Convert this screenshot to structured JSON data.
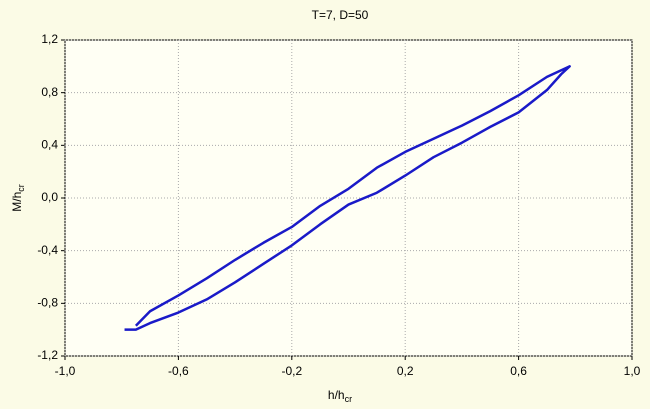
{
  "chart_data": {
    "type": "line",
    "title": "T=7, D=50",
    "xlabel": "h/h",
    "xlabel_sub": "cr",
    "ylabel": "M/h",
    "ylabel_sub": "cr",
    "xlim": [
      -1.0,
      1.0
    ],
    "xticks": [
      {
        "value": -1.0,
        "label": "-1,0"
      },
      {
        "value": -0.6,
        "label": "-0,6"
      },
      {
        "value": -0.2,
        "label": "-0,2"
      },
      {
        "value": 0.2,
        "label": "0,2"
      },
      {
        "value": 0.6,
        "label": "0,6"
      },
      {
        "value": 1.0,
        "label": "1,0"
      }
    ],
    "ylim": [
      -1.2,
      1.2
    ],
    "yticks": [
      {
        "value": -1.2,
        "label": "-1,2"
      },
      {
        "value": -0.8,
        "label": "-0,8"
      },
      {
        "value": -0.4,
        "label": "-0,4"
      },
      {
        "value": 0.0,
        "label": "0,0"
      },
      {
        "value": 0.4,
        "label": "0,4"
      },
      {
        "value": 0.8,
        "label": "0,8"
      },
      {
        "value": 1.2,
        "label": "1,2"
      }
    ],
    "grid": true,
    "series": [
      {
        "color": "#1a1ac8",
        "x": [
          -0.79,
          -0.75,
          -0.7,
          -0.6,
          -0.5,
          -0.4,
          -0.3,
          -0.2,
          -0.1,
          0.0,
          0.1,
          0.2,
          0.3,
          0.4,
          0.5,
          0.6,
          0.7,
          0.75,
          0.78,
          0.7,
          0.6,
          0.5,
          0.4,
          0.3,
          0.2,
          0.1,
          0.0,
          -0.1,
          -0.2,
          -0.3,
          -0.4,
          -0.5,
          -0.6,
          -0.7,
          -0.75
        ],
        "values": [
          -1.0,
          -1.0,
          -0.95,
          -0.87,
          -0.77,
          -0.64,
          -0.5,
          -0.36,
          -0.2,
          -0.05,
          0.04,
          0.17,
          0.31,
          0.42,
          0.54,
          0.65,
          0.82,
          0.94,
          1.0,
          0.92,
          0.78,
          0.66,
          0.55,
          0.45,
          0.35,
          0.23,
          0.07,
          -0.06,
          -0.22,
          -0.34,
          -0.47,
          -0.61,
          -0.74,
          -0.86,
          -0.97
        ]
      }
    ]
  }
}
